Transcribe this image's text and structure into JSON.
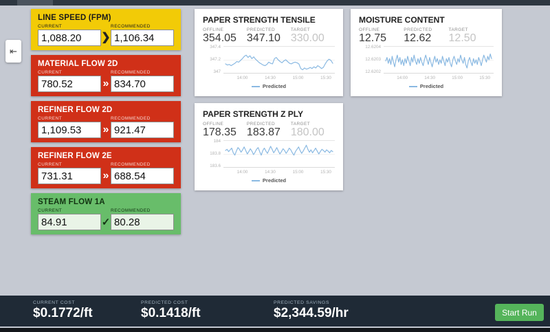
{
  "colors": {
    "line": "#8ab9e2",
    "warning": "#f2cb07",
    "alert": "#d03018",
    "ok": "#68bd6a",
    "footer_bar": "#1f2a36",
    "start_button": "#55b45b",
    "background": "#c5c9d2"
  },
  "window": {
    "collapse_icon": "⇤"
  },
  "controls": [
    {
      "title": "LINE SPEED (FPM)",
      "current_label": "CURRENT",
      "recommended_label": "RECOMMENDED",
      "current": "1,088.20",
      "recommended": "1,106.34",
      "arrow": "❯",
      "state": "warning"
    },
    {
      "title": "MATERIAL FLOW 2D",
      "current_label": "CURRENT",
      "recommended_label": "RECOMMENDED",
      "current": "780.52",
      "recommended": "834.70",
      "arrow": "»",
      "state": "alert"
    },
    {
      "title": "REFINER FLOW 2D",
      "current_label": "CURRENT",
      "recommended_label": "RECOMMENDED",
      "current": "1,109.53",
      "recommended": "921.47",
      "arrow": "»",
      "state": "alert"
    },
    {
      "title": "REFINER FLOW 2E",
      "current_label": "CURRENT",
      "recommended_label": "RECOMMENDED",
      "current": "731.31",
      "recommended": "688.54",
      "arrow": "»",
      "state": "alert"
    },
    {
      "title": "STEAM FLOW 1A",
      "current_label": "CURRENT",
      "recommended_label": "RECOMMENDED",
      "current": "84.91",
      "recommended": "80.28",
      "arrow": "✓",
      "state": "ok"
    }
  ],
  "panels": [
    {
      "title": "PAPER STRENGTH TENSILE",
      "offline_label": "OFFLINE",
      "predicted_label": "PREDICTED",
      "target_label": "TARGET",
      "offline": "354.05",
      "predicted": "347.10",
      "target": "330.00",
      "legend": "Predicted",
      "chart_data": {
        "type": "line",
        "ylim": [
          347,
          347.4
        ],
        "y_ticks": [
          "347.4",
          "347.2",
          "347"
        ],
        "x_ticks": [
          "14:00",
          "14:30",
          "15:00",
          "15:30"
        ],
        "x_tick_pos": [
          17,
          42,
          67,
          92
        ],
        "values": [
          347.13,
          347.11,
          347.12,
          347.1,
          347.12,
          347.14,
          347.17,
          347.16,
          347.19,
          347.22,
          347.26,
          347.28,
          347.24,
          347.27,
          347.22,
          347.25,
          347.21,
          347.18,
          347.15,
          347.13,
          347.11,
          347.1,
          347.12,
          347.16,
          347.14,
          347.13,
          347.22,
          347.24,
          347.2,
          347.17,
          347.15,
          347.18,
          347.2,
          347.17,
          347.14,
          347.13,
          347.15,
          347.16,
          347.15,
          347.13,
          347.05,
          347.03,
          347.06,
          347.04,
          347.05,
          347.07,
          347.05,
          347.08,
          347.06,
          347.1,
          347.08,
          347.05,
          347.07,
          347.13,
          347.18,
          347.21,
          347.19,
          347.14
        ]
      }
    },
    {
      "title": "PAPER STRENGTH Z PLY",
      "offline_label": "OFFLINE",
      "predicted_label": "PREDICTED",
      "target_label": "TARGET",
      "offline": "178.35",
      "predicted": "183.87",
      "target": "180.00",
      "legend": "Predicted",
      "chart_data": {
        "type": "line",
        "ylim": [
          183.6,
          184
        ],
        "y_ticks": [
          "184",
          "183.8",
          "183.6"
        ],
        "x_ticks": [
          "14:00",
          "14:30",
          "15:00",
          "15:30"
        ],
        "x_tick_pos": [
          17,
          42,
          67,
          92
        ],
        "values": [
          183.86,
          183.88,
          183.84,
          183.87,
          183.9,
          183.82,
          183.78,
          183.85,
          183.91,
          183.88,
          183.83,
          183.87,
          183.92,
          183.86,
          183.8,
          183.84,
          183.89,
          183.85,
          183.79,
          183.83,
          183.88,
          183.91,
          183.84,
          183.78,
          183.86,
          183.9,
          183.85,
          183.81,
          183.87,
          183.93,
          183.88,
          183.82,
          183.86,
          183.91,
          183.85,
          183.8,
          183.84,
          183.89,
          183.86,
          183.81,
          183.85,
          183.9,
          183.87,
          183.82,
          183.78,
          183.84,
          183.88,
          183.92,
          183.86,
          183.81,
          183.85,
          183.9,
          183.95,
          183.88,
          183.83,
          183.87,
          183.82,
          183.86,
          183.9,
          183.85,
          183.8,
          183.84,
          183.88,
          183.86,
          183.83,
          183.87,
          183.85,
          183.82,
          183.86,
          183.84
        ]
      }
    },
    {
      "title": "MOISTURE CONTENT",
      "offline_label": "OFFLINE",
      "predicted_label": "PREDICTED",
      "target_label": "TARGET",
      "offline": "12.75",
      "predicted": "12.62",
      "target": "12.50",
      "legend": "Predicted",
      "chart_data": {
        "type": "line",
        "ylim": [
          12.6202,
          12.6204
        ],
        "y_ticks": [
          "12.6204",
          "12.6203",
          "12.6202"
        ],
        "x_ticks": [
          "14:00",
          "14:30",
          "15:00",
          "15:30"
        ],
        "x_tick_pos": [
          17,
          42,
          67,
          92
        ],
        "values": [
          12.62029,
          12.62032,
          12.62027,
          12.62031,
          12.62026,
          12.62033,
          12.62028,
          12.62024,
          12.6203,
          12.62034,
          12.62028,
          12.62032,
          12.62026,
          12.6203,
          12.62025,
          12.62031,
          12.62027,
          12.62033,
          12.62029,
          12.62025,
          12.62032,
          12.62028,
          12.62034,
          12.62029,
          12.62026,
          12.62031,
          12.62027,
          12.62032,
          12.62028,
          12.62025,
          12.6203,
          12.62034,
          12.6203,
          12.62026,
          12.62032,
          12.62028,
          12.62024,
          12.62029,
          12.62033,
          12.62028,
          12.62031,
          12.62026,
          12.6203,
          12.62027,
          12.62033,
          12.62029,
          12.62025,
          12.62031,
          12.62028,
          12.62032,
          12.62027,
          12.62024,
          12.6203,
          12.62033,
          12.62029,
          12.62026,
          12.62031,
          12.62028,
          12.62034,
          12.6203,
          12.62027,
          12.62032,
          12.62026,
          12.62023,
          12.62029,
          12.62032,
          12.62028,
          12.62025,
          12.62031,
          12.62027,
          12.6203,
          12.62026,
          12.62032,
          12.62029,
          12.62025,
          12.6203,
          12.62034,
          12.62031,
          12.62028,
          12.62033,
          12.6203,
          12.62035,
          12.62031
        ]
      }
    }
  ],
  "footer": {
    "current_cost_label": "CURRENT COST",
    "current_cost": "$0.1772/ft",
    "predicted_cost_label": "PREDICTED COST",
    "predicted_cost": "$0.1418/ft",
    "predicted_savings_label": "PREDICTED SAVINGS",
    "predicted_savings": "$2,344.59/hr",
    "start_run_label": "Start Run"
  }
}
